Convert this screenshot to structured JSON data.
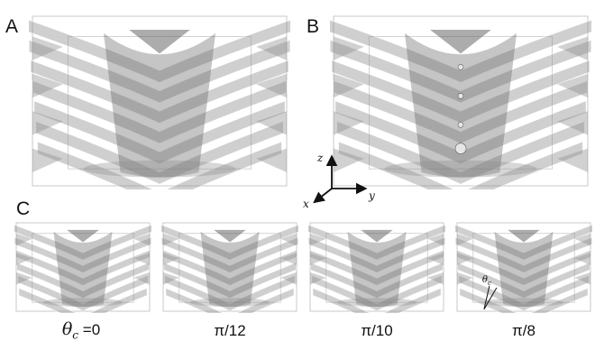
{
  "panels": {
    "a_label": "A",
    "b_label": "B",
    "c_label": "C"
  },
  "axes": {
    "x": "x",
    "y": "y",
    "z": "z"
  },
  "conditions": {
    "theta_symbol": "θ",
    "theta_sub": "c",
    "first_value": "=0",
    "values": [
      "π/12",
      "π/10",
      "π/8"
    ],
    "angle_marker": "θ",
    "angle_marker_sub": "c"
  },
  "colors": {
    "surface": "#8c8c8c",
    "surface_dark": "#5a5a5a",
    "box": "#c8c8c8",
    "text": "#111111"
  }
}
